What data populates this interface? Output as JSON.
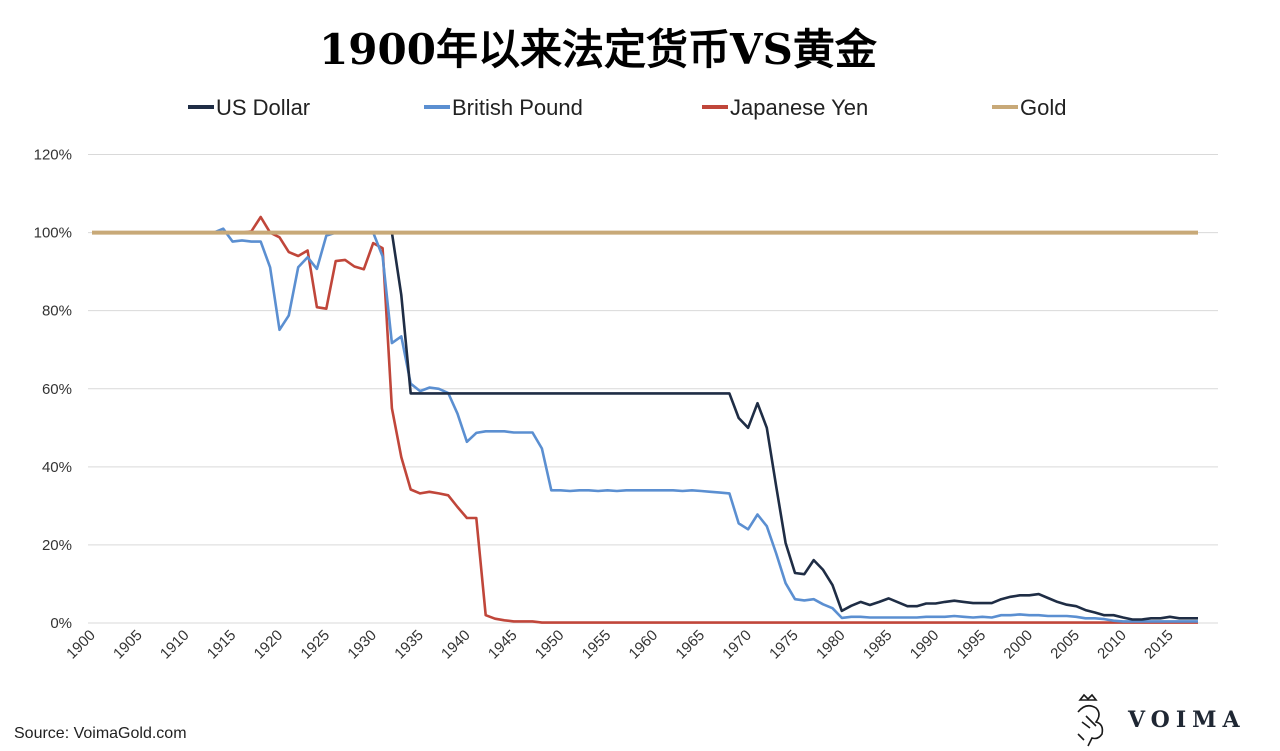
{
  "chart_data": {
    "type": "line",
    "title": "1900年以来法定货币VS黄金",
    "xlabel": "",
    "ylabel": "",
    "xlim": [
      1900,
      2018
    ],
    "ylim": [
      0,
      120
    ],
    "y_ticks": [
      "0%",
      "20%",
      "40%",
      "60%",
      "80%",
      "100%",
      "120%"
    ],
    "x_ticks": [
      "1900",
      "1905",
      "1910",
      "1915",
      "1920",
      "1925",
      "1930",
      "1935",
      "1940",
      "1945",
      "1950",
      "1955",
      "1960",
      "1965",
      "1970",
      "1975",
      "1980",
      "1985",
      "1990",
      "1995",
      "2000",
      "2005",
      "2010",
      "2015"
    ],
    "grid": "horizontal",
    "legend_position": "top",
    "x": [
      1900,
      1901,
      1902,
      1903,
      1904,
      1905,
      1906,
      1907,
      1908,
      1909,
      1910,
      1911,
      1912,
      1913,
      1914,
      1915,
      1916,
      1917,
      1918,
      1919,
      1920,
      1921,
      1922,
      1923,
      1924,
      1925,
      1926,
      1927,
      1928,
      1929,
      1930,
      1931,
      1932,
      1933,
      1934,
      1935,
      1936,
      1937,
      1938,
      1939,
      1940,
      1941,
      1942,
      1943,
      1944,
      1945,
      1946,
      1947,
      1948,
      1949,
      1950,
      1951,
      1952,
      1953,
      1954,
      1955,
      1956,
      1957,
      1958,
      1959,
      1960,
      1961,
      1962,
      1963,
      1964,
      1965,
      1966,
      1967,
      1968,
      1969,
      1970,
      1971,
      1972,
      1973,
      1974,
      1975,
      1976,
      1977,
      1978,
      1979,
      1980,
      1981,
      1982,
      1983,
      1984,
      1985,
      1986,
      1987,
      1988,
      1989,
      1990,
      1991,
      1992,
      1993,
      1994,
      1995,
      1996,
      1997,
      1998,
      1999,
      2000,
      2001,
      2002,
      2003,
      2004,
      2005,
      2006,
      2007,
      2008,
      2009,
      2010,
      2011,
      2012,
      2013,
      2014,
      2015,
      2016,
      2017,
      2018
    ],
    "series": [
      {
        "name": "US Dollar",
        "color": "#1f2d45",
        "values": [
          100,
          100,
          100,
          100,
          100,
          100,
          100,
          100,
          100,
          100,
          100,
          100,
          100,
          100,
          100,
          100,
          100,
          100,
          100,
          100,
          100,
          100,
          100,
          100,
          100,
          100,
          100,
          100,
          100,
          100,
          100,
          100,
          100,
          84,
          58.8,
          58.8,
          58.8,
          58.8,
          58.8,
          58.8,
          58.8,
          58.8,
          58.8,
          58.8,
          58.8,
          58.8,
          58.8,
          58.8,
          58.8,
          58.8,
          58.8,
          58.8,
          58.8,
          58.8,
          58.8,
          58.8,
          58.8,
          58.8,
          58.8,
          58.8,
          58.8,
          58.8,
          58.8,
          58.8,
          58.8,
          58.8,
          58.8,
          58.8,
          58.8,
          52.5,
          50,
          56.3,
          50,
          35,
          20.5,
          12.8,
          12.5,
          16.1,
          13.6,
          9.7,
          3.1,
          4.4,
          5.4,
          4.6,
          5.4,
          6.3,
          5.3,
          4.3,
          4.3,
          5.0,
          5.0,
          5.4,
          5.7,
          5.4,
          5.1,
          5.1,
          5.1,
          6.1,
          6.7,
          7.1,
          7.1,
          7.4,
          6.4,
          5.4,
          4.7,
          4.3,
          3.3,
          2.7,
          2.0,
          2.0,
          1.4,
          0.9,
          0.9,
          1.2,
          1.2,
          1.6,
          1.2,
          1.2,
          1.2
        ]
      },
      {
        "name": "British Pound",
        "color": "#5b8fd1",
        "values": [
          100,
          100,
          100,
          100,
          100,
          100,
          100,
          100,
          100,
          100,
          100,
          100,
          100,
          100,
          101,
          97.7,
          98,
          97.7,
          97.7,
          91.1,
          75.1,
          78.8,
          91.1,
          93.7,
          90.7,
          99.2,
          100,
          100,
          100,
          100,
          100,
          93.9,
          71.7,
          73.4,
          61.3,
          59.4,
          60.3,
          60,
          58.9,
          53.6,
          46.4,
          48.7,
          49.1,
          49.1,
          49.1,
          48.8,
          48.8,
          48.8,
          44.7,
          34,
          34,
          33.8,
          34,
          34,
          33.8,
          34,
          33.8,
          34,
          34,
          34,
          34,
          34,
          34,
          33.8,
          34,
          33.8,
          33.6,
          33.4,
          33.2,
          25.5,
          24,
          27.8,
          24.8,
          17.8,
          10.2,
          6.1,
          5.8,
          6.1,
          4.8,
          3.8,
          1.3,
          1.6,
          1.6,
          1.4,
          1.4,
          1.4,
          1.4,
          1.4,
          1.4,
          1.6,
          1.6,
          1.6,
          1.8,
          1.6,
          1.4,
          1.6,
          1.4,
          2.0,
          2.0,
          2.2,
          2.0,
          2.0,
          1.8,
          1.8,
          1.8,
          1.6,
          1.2,
          1.2,
          1.0,
          0.6,
          0.4,
          0.4,
          0.4,
          0.4,
          0.4,
          0.4,
          0.4,
          0.4,
          0.4
        ]
      },
      {
        "name": "Japanese Yen",
        "color": "#c0463a",
        "values": [
          100,
          100,
          100,
          100,
          100,
          100,
          100,
          100,
          100,
          100,
          100,
          100,
          100,
          100,
          100,
          100,
          100,
          100.3,
          104,
          100,
          98.8,
          95,
          94,
          95.4,
          80.9,
          80.5,
          92.7,
          93,
          91.3,
          90.6,
          97.3,
          96,
          55,
          42.5,
          34.2,
          33.2,
          33.6,
          33.2,
          32.7,
          29.7,
          26.9,
          26.9,
          2.0,
          1.1,
          0.7,
          0.4,
          0.4,
          0.4,
          0.1,
          0.1,
          0.1,
          0.1,
          0.1,
          0.1,
          0.1,
          0.1,
          0.1,
          0.1,
          0.1,
          0.1,
          0.1,
          0.1,
          0.1,
          0.1,
          0.1,
          0.1,
          0.1,
          0.1,
          0.1,
          0.1,
          0.1,
          0.1,
          0.1,
          0.1,
          0.1,
          0.1,
          0.1,
          0.1,
          0.1,
          0.1,
          0.1,
          0.1,
          0.1,
          0.1,
          0.1,
          0.1,
          0.1,
          0.1,
          0.1,
          0.1,
          0.1,
          0.1,
          0.1,
          0.1,
          0.1,
          0.1,
          0.1,
          0.1,
          0.1,
          0.1,
          0.1,
          0.1,
          0.1,
          0.1,
          0.1,
          0.1,
          0.1,
          0.1,
          0.1,
          0.1,
          0.1,
          0.1,
          0.1,
          0.1,
          0.1,
          0.1,
          0.1,
          0.1,
          0.1
        ]
      },
      {
        "name": "Gold",
        "color": "#c8a978",
        "values": [
          100,
          100,
          100,
          100,
          100,
          100,
          100,
          100,
          100,
          100,
          100,
          100,
          100,
          100,
          100,
          100,
          100,
          100,
          100,
          100,
          100,
          100,
          100,
          100,
          100,
          100,
          100,
          100,
          100,
          100,
          100,
          100,
          100,
          100,
          100,
          100,
          100,
          100,
          100,
          100,
          100,
          100,
          100,
          100,
          100,
          100,
          100,
          100,
          100,
          100,
          100,
          100,
          100,
          100,
          100,
          100,
          100,
          100,
          100,
          100,
          100,
          100,
          100,
          100,
          100,
          100,
          100,
          100,
          100,
          100,
          100,
          100,
          100,
          100,
          100,
          100,
          100,
          100,
          100,
          100,
          100,
          100,
          100,
          100,
          100,
          100,
          100,
          100,
          100,
          100,
          100,
          100,
          100,
          100,
          100,
          100,
          100,
          100,
          100,
          100,
          100,
          100,
          100,
          100,
          100,
          100,
          100,
          100,
          100,
          100,
          100,
          100,
          100,
          100,
          100,
          100,
          100,
          100,
          100
        ]
      }
    ]
  },
  "source": "Source: VoimaGold.com",
  "logo": {
    "text": "VOIMA"
  }
}
